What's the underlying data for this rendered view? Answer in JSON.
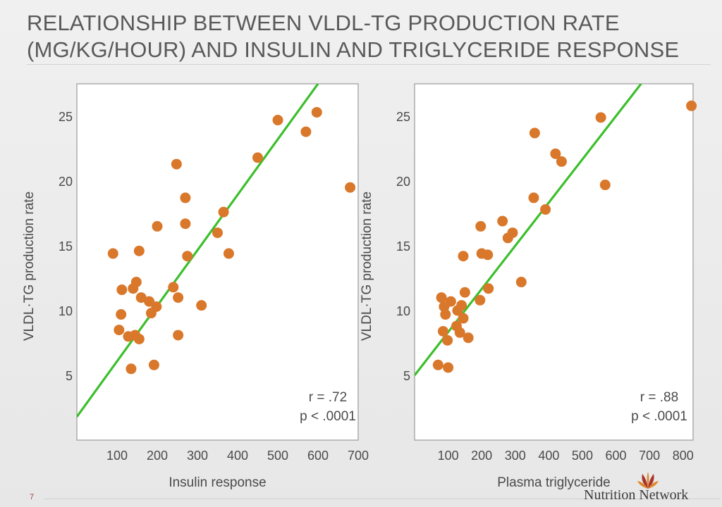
{
  "slide": {
    "title_line1": "RELATIONSHIP BETWEEN VLDL-TG PRODUCTION RATE",
    "title_line2": "(MG/KG/HOUR) AND INSULIN AND TRIGLYCERIDE RESPONSE",
    "slide_number": "7",
    "brand": "Nutrition Network"
  },
  "colors": {
    "point": "#d9782b",
    "fit_line": "#3cbf2c",
    "frame": "#9a9a9a",
    "text": "#4a4a4a"
  },
  "chart_data": [
    {
      "type": "scatter",
      "title": "",
      "xlabel": "Insulin response",
      "ylabel": "VLDL·TG production rate",
      "xlim": [
        0,
        700
      ],
      "ylim": [
        0,
        27.5
      ],
      "xticks": [
        100,
        200,
        300,
        400,
        500,
        600,
        700
      ],
      "yticks": [
        5,
        10,
        15,
        20,
        25
      ],
      "grid": false,
      "annotation": [
        "r = .72",
        "p < .0001"
      ],
      "points": [
        {
          "x": 90,
          "y": 14.4
        },
        {
          "x": 105,
          "y": 8.5
        },
        {
          "x": 110,
          "y": 9.7
        },
        {
          "x": 112,
          "y": 11.6
        },
        {
          "x": 128,
          "y": 8.0
        },
        {
          "x": 135,
          "y": 5.5
        },
        {
          "x": 140,
          "y": 11.7
        },
        {
          "x": 145,
          "y": 8.1
        },
        {
          "x": 148,
          "y": 12.2
        },
        {
          "x": 155,
          "y": 7.8
        },
        {
          "x": 155,
          "y": 14.6
        },
        {
          "x": 160,
          "y": 11.0
        },
        {
          "x": 180,
          "y": 10.7
        },
        {
          "x": 185,
          "y": 9.8
        },
        {
          "x": 192,
          "y": 5.8
        },
        {
          "x": 198,
          "y": 10.3
        },
        {
          "x": 200,
          "y": 16.5
        },
        {
          "x": 240,
          "y": 11.8
        },
        {
          "x": 248,
          "y": 21.3
        },
        {
          "x": 252,
          "y": 11.0
        },
        {
          "x": 252,
          "y": 8.1
        },
        {
          "x": 270,
          "y": 18.7
        },
        {
          "x": 270,
          "y": 16.7
        },
        {
          "x": 275,
          "y": 14.2
        },
        {
          "x": 310,
          "y": 10.4
        },
        {
          "x": 350,
          "y": 16.0
        },
        {
          "x": 365,
          "y": 17.6
        },
        {
          "x": 378,
          "y": 14.4
        },
        {
          "x": 450,
          "y": 21.8
        },
        {
          "x": 500,
          "y": 24.7
        },
        {
          "x": 570,
          "y": 23.8
        },
        {
          "x": 597,
          "y": 25.3
        },
        {
          "x": 680,
          "y": 19.5
        }
      ],
      "fit_line": [
        [
          0,
          1.8
        ],
        [
          600,
          27.5
        ]
      ]
    },
    {
      "type": "scatter",
      "title": "",
      "xlabel": "Plasma triglyceride",
      "ylabel": "VLDL·TG production rate",
      "xlim": [
        0,
        830
      ],
      "ylim": [
        0,
        27.5
      ],
      "xticks": [
        100,
        200,
        300,
        400,
        500,
        600,
        700,
        800
      ],
      "yticks": [
        5,
        10,
        15,
        20,
        25
      ],
      "grid": false,
      "annotation": [
        "r = .88",
        "p < .0001"
      ],
      "points": [
        {
          "x": 70,
          "y": 5.8
        },
        {
          "x": 80,
          "y": 11.0
        },
        {
          "x": 85,
          "y": 8.4
        },
        {
          "x": 88,
          "y": 10.3
        },
        {
          "x": 92,
          "y": 9.7
        },
        {
          "x": 98,
          "y": 7.7
        },
        {
          "x": 100,
          "y": 5.6
        },
        {
          "x": 108,
          "y": 10.7
        },
        {
          "x": 125,
          "y": 8.8
        },
        {
          "x": 128,
          "y": 10.0
        },
        {
          "x": 135,
          "y": 8.3
        },
        {
          "x": 140,
          "y": 10.4
        },
        {
          "x": 145,
          "y": 9.4
        },
        {
          "x": 145,
          "y": 14.2
        },
        {
          "x": 150,
          "y": 11.4
        },
        {
          "x": 160,
          "y": 7.9
        },
        {
          "x": 195,
          "y": 10.8
        },
        {
          "x": 197,
          "y": 16.5
        },
        {
          "x": 200,
          "y": 14.4
        },
        {
          "x": 218,
          "y": 14.3
        },
        {
          "x": 220,
          "y": 11.7
        },
        {
          "x": 262,
          "y": 16.9
        },
        {
          "x": 278,
          "y": 15.6
        },
        {
          "x": 292,
          "y": 16.0
        },
        {
          "x": 318,
          "y": 12.2
        },
        {
          "x": 355,
          "y": 18.7
        },
        {
          "x": 358,
          "y": 23.7
        },
        {
          "x": 390,
          "y": 17.8
        },
        {
          "x": 420,
          "y": 22.1
        },
        {
          "x": 438,
          "y": 21.5
        },
        {
          "x": 555,
          "y": 24.9
        },
        {
          "x": 568,
          "y": 19.7
        },
        {
          "x": 825,
          "y": 25.8
        }
      ],
      "fit_line": [
        [
          0,
          5.0
        ],
        [
          675,
          27.5
        ]
      ]
    }
  ]
}
